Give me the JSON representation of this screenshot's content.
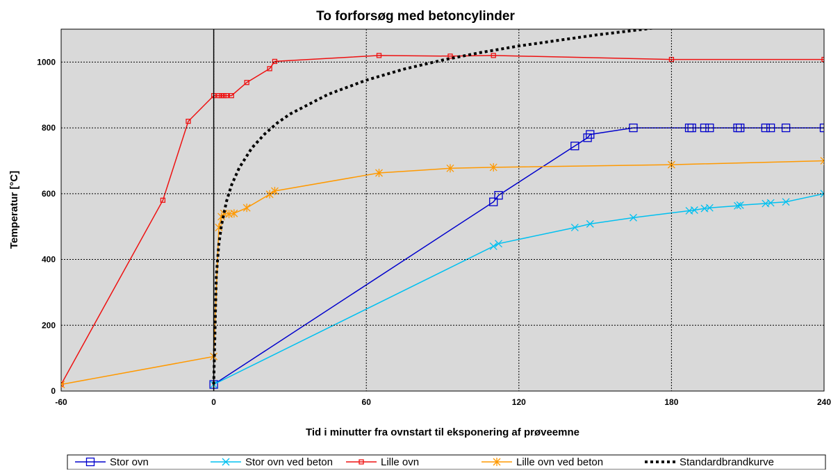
{
  "chart_data": {
    "type": "line",
    "title": "To forforsøg med betoncylinder",
    "xlabel": "Tid i minutter fra ovnstart til eksponering af prøveemne",
    "ylabel": "Temperatur [°C]",
    "xlim": [
      -60,
      240
    ],
    "xticks": [
      -60,
      0,
      60,
      120,
      180,
      240
    ],
    "ylim": [
      0,
      1100
    ],
    "yticks": [
      0,
      200,
      400,
      600,
      800,
      1000
    ],
    "grid": true,
    "legend": "bottom",
    "series": [
      {
        "name": "Stor ovn",
        "color": "#0000cc",
        "marker": "square",
        "x": [
          0,
          110,
          112,
          142,
          147,
          148,
          165,
          187,
          188,
          193,
          195,
          206,
          207,
          217,
          219,
          225,
          240
        ],
        "values": [
          20,
          575,
          595,
          745,
          770,
          780,
          800,
          800,
          800,
          800,
          800,
          800,
          800,
          800,
          800,
          800,
          800
        ]
      },
      {
        "name": "Stor ovn ved beton",
        "color": "#00c0f0",
        "marker": "x",
        "x": [
          0,
          110,
          112,
          142,
          148,
          165,
          187,
          189,
          193,
          195,
          206,
          207,
          217,
          219,
          225,
          240
        ],
        "values": [
          20,
          440,
          448,
          497,
          508,
          527,
          548,
          550,
          555,
          557,
          563,
          565,
          570,
          572,
          575,
          600
        ]
      },
      {
        "name": "Lille ovn",
        "color": "#ee1111",
        "marker": "small-square",
        "x": [
          -60,
          -20,
          -10,
          0,
          2,
          3,
          4,
          5,
          7,
          13,
          22,
          24,
          65,
          93,
          110,
          180,
          240
        ],
        "values": [
          20,
          580,
          820,
          898,
          898,
          898,
          898,
          898,
          898,
          938,
          980,
          1002,
          1020,
          1018,
          1020,
          1008,
          1008
        ]
      },
      {
        "name": "Lille ovn ved beton",
        "color": "#ff9900",
        "marker": "star",
        "x": [
          -60,
          0,
          2,
          3,
          4,
          6,
          8,
          13,
          22,
          24,
          65,
          93,
          110,
          180,
          240
        ],
        "values": [
          20,
          105,
          497,
          530,
          540,
          538,
          540,
          557,
          598,
          608,
          663,
          677,
          680,
          688,
          700
        ]
      },
      {
        "name": "Standardbrandkurve",
        "color": "#000000",
        "marker": "none",
        "dash": "dotted",
        "x": [
          0,
          1,
          2,
          3,
          5,
          7,
          10,
          15,
          20,
          25,
          30,
          45,
          60,
          75,
          90,
          105,
          120,
          150,
          180
        ],
        "values": [
          20,
          349,
          445,
          502,
          576,
          626,
          678,
          739,
          781,
          815,
          842,
          902,
          945,
          979,
          1006,
          1029,
          1049,
          1082,
          1110
        ]
      }
    ]
  }
}
